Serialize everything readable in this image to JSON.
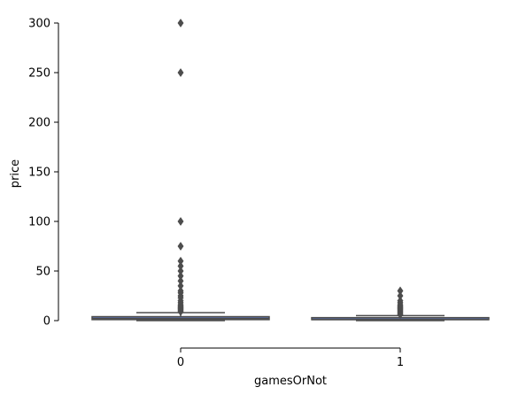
{
  "chart_data": {
    "type": "boxplot",
    "title": "",
    "xlabel": "gamesOrNot",
    "ylabel": "price",
    "ylim": [
      0,
      300
    ],
    "yticks": [
      0,
      50,
      100,
      150,
      200,
      250,
      300
    ],
    "grid": false,
    "categories": [
      "0",
      "1"
    ],
    "box_color": "#5b6fa8",
    "line_color": "#4d4d4d",
    "boxes": [
      {
        "category": "0",
        "q1": 0.99,
        "median": 1.99,
        "q3": 3.99,
        "whisker_low": 0,
        "whisker_high": 7.99,
        "outliers": [
          8.99,
          9.99,
          10.99,
          11.99,
          12.99,
          13.99,
          14.99,
          15.99,
          17.99,
          19.99,
          22.99,
          24.99,
          27.99,
          29.99,
          34.99,
          39.99,
          44.99,
          49.99,
          54.99,
          59.99,
          74.99,
          99.99,
          249.99,
          299.99
        ]
      },
      {
        "category": "1",
        "q1": 0.99,
        "median": 0.99,
        "q3": 2.99,
        "whisker_low": 0,
        "whisker_high": 4.99,
        "outliers": [
          5.99,
          6.99,
          7.99,
          8.99,
          9.99,
          10.99,
          11.99,
          12.99,
          13.99,
          14.99,
          15.99,
          17.99,
          19.99,
          24.99,
          29.99
        ]
      }
    ]
  }
}
